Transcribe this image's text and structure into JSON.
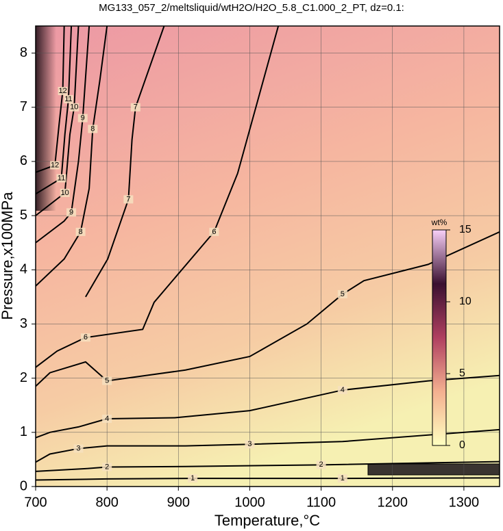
{
  "chart_data": {
    "type": "contour",
    "title": "MG133_057_2/meltsliquid/wtH2O/H2O_5.8_C1.000_2_PT, dz=0.1:",
    "x_label": "Temperature,°C",
    "y_label": "Pressure,x100MPa",
    "xlim": [
      700,
      1350
    ],
    "ylim": [
      0,
      8.5
    ],
    "xticks": [
      700,
      800,
      900,
      1000,
      1100,
      1200,
      1300
    ],
    "yticks": [
      0,
      1,
      2,
      3,
      4,
      5,
      6,
      7,
      8
    ],
    "grid": true,
    "line_color": "#000000",
    "colorbar": {
      "label": "wt%",
      "lim": [
        0,
        15
      ],
      "ticks": [
        0,
        5,
        10,
        15
      ],
      "colors": [
        "#ffffc0",
        "#f4b090",
        "#b04060",
        "#3a1030",
        "#f8d0f8"
      ]
    },
    "series": [
      {
        "level": 1,
        "x": [
          700,
          800,
          920,
          1000,
          1130,
          1350
        ],
        "y": [
          0.12,
          0.14,
          0.15,
          0.15,
          0.15,
          0.16
        ]
      },
      {
        "level": 2,
        "x": [
          700,
          770,
          800,
          910,
          1100,
          1350
        ],
        "y": [
          0.28,
          0.33,
          0.36,
          0.37,
          0.4,
          0.46
        ]
      },
      {
        "level": 3,
        "x": [
          700,
          720,
          760,
          800,
          910,
          1000,
          1130,
          1350
        ],
        "y": [
          0.45,
          0.6,
          0.7,
          0.75,
          0.75,
          0.78,
          0.83,
          1.05
        ]
      },
      {
        "level": 4,
        "x": [
          700,
          720,
          760,
          800,
          895,
          1000,
          1130,
          1250,
          1350
        ],
        "y": [
          0.9,
          1.0,
          1.1,
          1.25,
          1.27,
          1.4,
          1.78,
          1.95,
          2.05
        ]
      },
      {
        "level": 5,
        "x": [
          700,
          720,
          770,
          800,
          910,
          1000,
          1080,
          1130,
          1160,
          1250,
          1350
        ],
        "y": [
          1.85,
          2.1,
          2.3,
          1.95,
          2.15,
          2.4,
          3.0,
          3.55,
          3.8,
          4.1,
          4.7
        ]
      },
      {
        "level": 6,
        "x": [
          700,
          730,
          770,
          850,
          866,
          950,
          983,
          1040
        ],
        "y": [
          2.2,
          2.5,
          2.75,
          2.9,
          3.4,
          4.7,
          5.78,
          8.5
        ]
      },
      {
        "level": 7,
        "x": [
          770,
          801,
          830,
          835,
          840,
          880
        ],
        "y": [
          3.5,
          4.2,
          5.3,
          6.4,
          7.0,
          8.5
        ]
      },
      {
        "level": 8,
        "x": [
          700,
          740,
          763,
          775,
          780,
          790,
          800
        ],
        "y": [
          3.7,
          4.2,
          4.7,
          5.5,
          6.6,
          7.5,
          8.5
        ]
      },
      {
        "level": 9,
        "x": [
          700,
          740,
          750,
          760,
          766,
          775
        ],
        "y": [
          4.5,
          4.9,
          5.06,
          6.0,
          6.8,
          8.5
        ]
      },
      {
        "level": 10,
        "x": [
          700,
          741,
          748,
          754,
          760
        ],
        "y": [
          5.0,
          5.42,
          6.5,
          7.0,
          8.5
        ]
      },
      {
        "level": 11,
        "x": [
          700,
          736,
          741,
          746,
          750
        ],
        "y": [
          5.4,
          5.69,
          6.5,
          7.15,
          8.5
        ]
      },
      {
        "level": 12,
        "x": [
          700,
          727,
          733,
          738,
          740
        ],
        "y": [
          5.8,
          5.93,
          6.7,
          7.3,
          8.5
        ]
      }
    ]
  }
}
